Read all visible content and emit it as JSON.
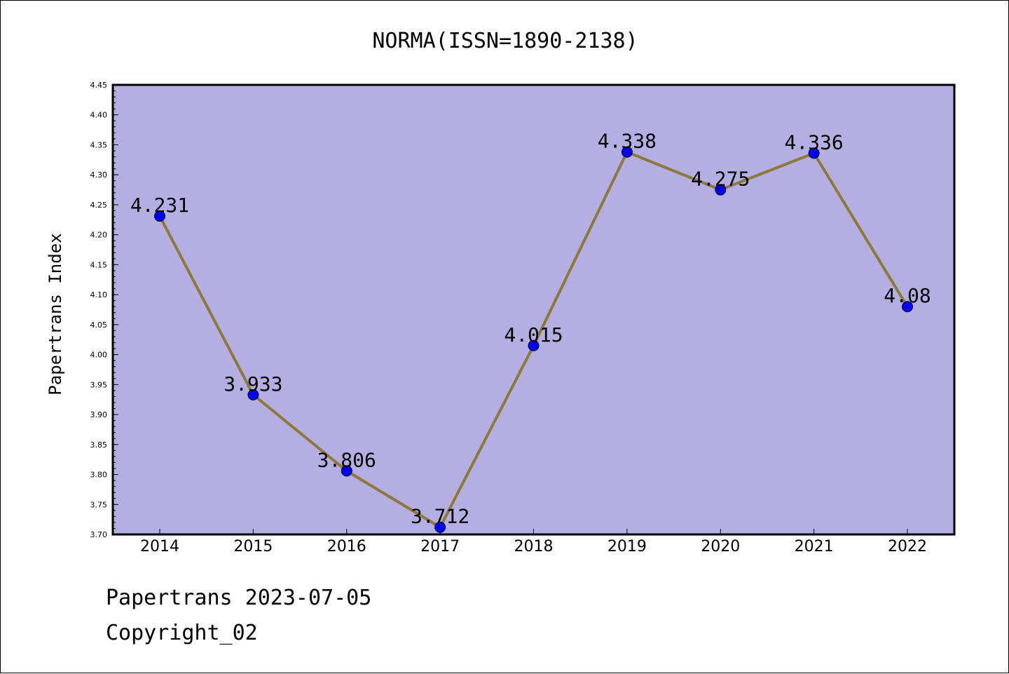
{
  "chart_data": {
    "type": "line",
    "title": "NORMA(ISSN=1890-2138)",
    "xlabel": "",
    "ylabel": "Papertrans Index",
    "categories": [
      "2014",
      "2015",
      "2016",
      "2017",
      "2018",
      "2019",
      "2020",
      "2021",
      "2022"
    ],
    "series": [
      {
        "values": [
          4.231,
          3.933,
          3.806,
          3.712,
          4.015,
          4.338,
          4.275,
          4.336,
          4.08
        ],
        "labels": [
          "4.231",
          "3.933",
          "3.806",
          "3.712",
          "4.015",
          "4.338",
          "4.275",
          "4.336",
          "4.08"
        ]
      }
    ],
    "ylim": [
      3.7,
      4.45
    ],
    "yticks": [
      "3.70",
      "3.75",
      "3.80",
      "3.85",
      "3.90",
      "3.95",
      "4.00",
      "4.05",
      "4.10",
      "4.15",
      "4.20",
      "4.25",
      "4.30",
      "4.35",
      "4.40",
      "4.45"
    ],
    "grid": false,
    "colors": {
      "plot_background": "#b5aee2",
      "line": "#8b7a3a",
      "marker": "#0000ee"
    }
  },
  "footer": {
    "line1": "Papertrans 2023-07-05",
    "line2": "Copyright_02"
  }
}
